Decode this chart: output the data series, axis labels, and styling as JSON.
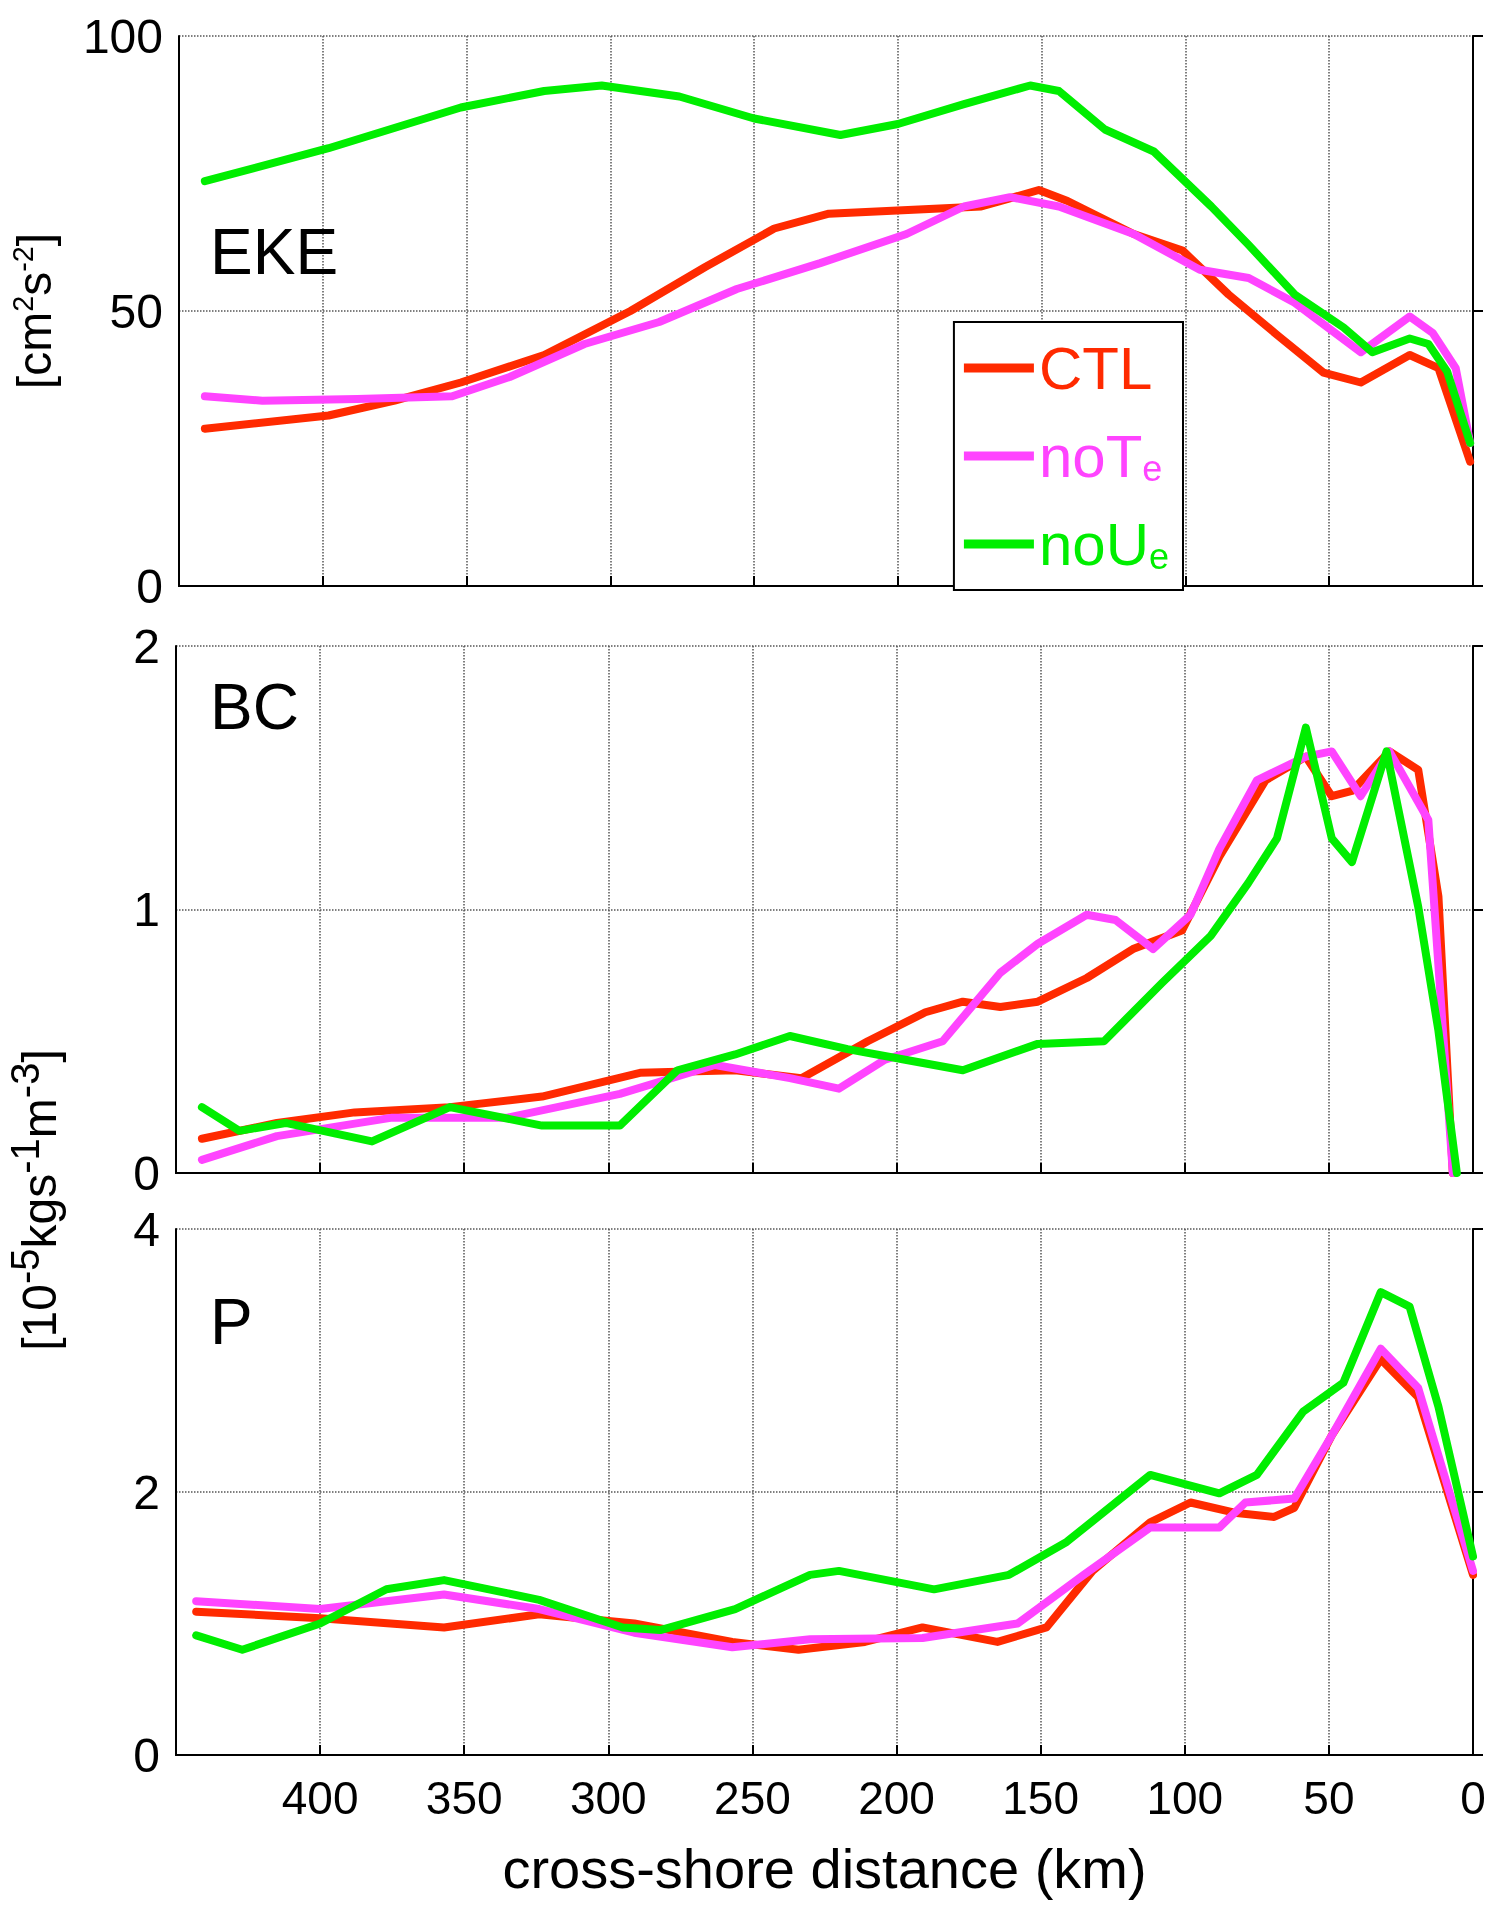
{
  "chart_data": [
    {
      "type": "line",
      "title": "EKE",
      "ylabel": "[cm$^{2}$s$^{-2}$]",
      "xlim": [
        450,
        0
      ],
      "xticks": [
        400,
        350,
        300,
        250,
        200,
        150,
        100,
        50,
        0
      ],
      "ylim": [
        0,
        100
      ],
      "yticks": [
        0,
        50,
        100
      ],
      "grid": true,
      "line_style": "solid",
      "legend": "bottom right",
      "tick_labels": "y",
      "series": [
        {
          "name": "CTL",
          "color": "#ff2a00",
          "x": [
            441,
            398,
            375,
            352,
            323,
            293,
            267,
            243,
            224,
            191,
            171,
            151,
            141,
            118,
            101,
            85,
            68,
            52,
            39,
            22,
            12,
            1
          ],
          "values": [
            28.6,
            31,
            33.7,
            37,
            42,
            50,
            58,
            65,
            67.7,
            68.5,
            69,
            72,
            70,
            64,
            61,
            53,
            45.6,
            38.8,
            37,
            42,
            39.6,
            22.6
          ]
        },
        {
          "name": "noT$_{e}$",
          "color": "#ff44ff",
          "x": [
            441,
            421,
            388,
            355,
            335,
            309,
            283,
            256,
            227,
            197,
            177,
            161,
            144,
            118,
            95,
            78,
            62,
            39,
            22,
            14,
            6,
            1
          ],
          "values": [
            34.5,
            33.7,
            34,
            34.5,
            38,
            44,
            48,
            54,
            58.7,
            64,
            69,
            70.7,
            69,
            64,
            57.5,
            56,
            51.5,
            42.5,
            49,
            46,
            39.6,
            26
          ]
        },
        {
          "name": "noU$_{e}$",
          "color": "#00ee00",
          "x": [
            441,
            398,
            352,
            323,
            303,
            276,
            250,
            220,
            200,
            177,
            154,
            144,
            128,
            111,
            91,
            78,
            62,
            45,
            35,
            22,
            15.5,
            9,
            1
          ],
          "values": [
            73.6,
            79.6,
            87,
            90,
            91,
            89,
            85,
            82,
            84,
            87.6,
            91,
            90,
            83,
            79,
            69,
            62,
            53,
            47,
            42.5,
            45,
            44,
            39,
            26
          ]
        }
      ]
    },
    {
      "type": "line",
      "title": "BC",
      "ylabel": "[10$^{-5}$kgs$^{-1}$m$^{-3}$]",
      "xlim": [
        450,
        0
      ],
      "xticks": [
        400,
        350,
        300,
        250,
        200,
        150,
        100,
        50,
        0
      ],
      "ylim": [
        0,
        2
      ],
      "yticks": [
        0,
        1,
        2
      ],
      "grid": true,
      "line_style": "solid",
      "tick_labels": "y",
      "series": [
        {
          "color": "#ff2a00",
          "x": [
            441,
            415,
            388,
            355,
            323,
            289,
            256,
            233,
            210,
            190,
            177,
            164,
            151,
            134,
            118,
            101,
            88,
            72,
            58,
            49,
            42,
            29,
            19,
            12,
            7
          ],
          "values": [
            0.13,
            0.19,
            0.23,
            0.25,
            0.29,
            0.38,
            0.39,
            0.36,
            0.5,
            0.61,
            0.65,
            0.63,
            0.65,
            0.74,
            0.85,
            0.92,
            1.2,
            1.49,
            1.58,
            1.43,
            1.45,
            1.6,
            1.53,
            1.05,
            0
          ]
        },
        {
          "color": "#ff44ff",
          "x": [
            441,
            415,
            375,
            335,
            296,
            263,
            237,
            220,
            204,
            184,
            164,
            151,
            134,
            124,
            111,
            98,
            88,
            75,
            58,
            49,
            39,
            29,
            15.5,
            7
          ],
          "values": [
            0.05,
            0.14,
            0.21,
            0.21,
            0.3,
            0.41,
            0.36,
            0.32,
            0.43,
            0.5,
            0.76,
            0.87,
            0.98,
            0.96,
            0.85,
            0.98,
            1.23,
            1.49,
            1.58,
            1.6,
            1.43,
            1.6,
            1.34,
            0
          ]
        },
        {
          "color": "#00ee00",
          "x": [
            441,
            428,
            412,
            382,
            355,
            323,
            296,
            276,
            256,
            237,
            217,
            197,
            177,
            151,
            128,
            108,
            91,
            78,
            68,
            58,
            49,
            42,
            30,
            19,
            12,
            5.6
          ],
          "values": [
            0.25,
            0.16,
            0.19,
            0.12,
            0.25,
            0.18,
            0.18,
            0.39,
            0.45,
            0.52,
            0.47,
            0.43,
            0.39,
            0.49,
            0.5,
            0.72,
            0.9,
            1.1,
            1.27,
            1.69,
            1.27,
            1.18,
            1.6,
            1.01,
            0.54,
            0
          ]
        }
      ]
    },
    {
      "type": "line",
      "title": "P",
      "xlabel": "cross-shore distance (km)",
      "xlim": [
        450,
        0
      ],
      "xticks": [
        400,
        350,
        300,
        250,
        200,
        150,
        100,
        50,
        0
      ],
      "ylim": [
        0,
        4
      ],
      "yticks": [
        0,
        2,
        4
      ],
      "grid": true,
      "line_style": "solid",
      "series": [
        {
          "color": "#ff2a00",
          "x": [
            443,
            400,
            357,
            324,
            291,
            257,
            234,
            211,
            191,
            165,
            148,
            132,
            112,
            98,
            82,
            69,
            62,
            49,
            32,
            19,
            0
          ],
          "values": [
            1.09,
            1.04,
            0.97,
            1.07,
            1.0,
            0.86,
            0.8,
            0.86,
            0.97,
            0.86,
            0.97,
            1.4,
            1.77,
            1.92,
            1.84,
            1.81,
            1.88,
            2.43,
            3.01,
            2.72,
            1.37
          ]
        },
        {
          "color": "#ff44ff",
          "x": [
            443,
            400,
            357,
            324,
            291,
            257,
            230,
            191,
            158,
            135,
            112,
            102,
            88,
            79,
            62,
            49,
            32,
            19,
            0
          ],
          "values": [
            1.17,
            1.11,
            1.22,
            1.11,
            0.93,
            0.82,
            0.88,
            0.89,
            1.0,
            1.37,
            1.73,
            1.73,
            1.73,
            1.92,
            1.95,
            2.43,
            3.09,
            2.79,
            1.4
          ]
        },
        {
          "color": "#00ee00",
          "x": [
            443,
            427,
            400,
            377,
            357,
            324,
            295,
            282,
            256,
            230,
            220,
            187,
            161,
            141,
            112,
            88,
            75,
            59,
            45,
            32,
            22,
            12,
            0
          ],
          "values": [
            0.91,
            0.8,
            1.0,
            1.26,
            1.33,
            1.18,
            0.97,
            0.95,
            1.11,
            1.37,
            1.4,
            1.26,
            1.37,
            1.62,
            2.13,
            1.99,
            2.13,
            2.61,
            2.83,
            3.52,
            3.41,
            2.65,
            1.51
          ]
        }
      ]
    }
  ]
}
